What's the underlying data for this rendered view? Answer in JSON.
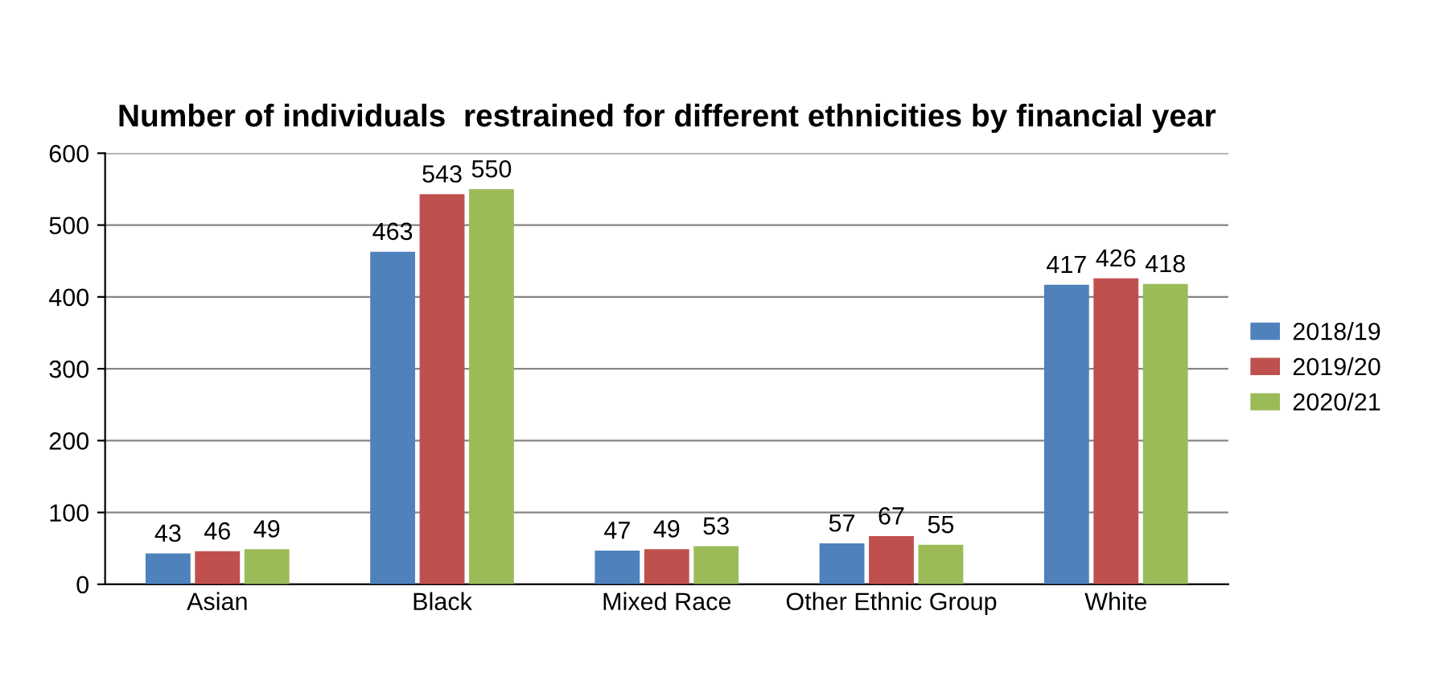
{
  "chart_data": {
    "type": "bar",
    "title": "Number of individuals  restrained for different ethnicities by financial year",
    "categories": [
      "Asian",
      "Black",
      "Mixed Race",
      "Other Ethnic Group",
      "White"
    ],
    "series": [
      {
        "name": "2018/19",
        "color": "#4f81bd",
        "values": [
          43,
          463,
          47,
          57,
          417
        ]
      },
      {
        "name": "2019/20",
        "color": "#c0504d",
        "values": [
          46,
          543,
          49,
          67,
          426
        ]
      },
      {
        "name": "2020/21",
        "color": "#9bbb59",
        "values": [
          49,
          550,
          53,
          55,
          418
        ]
      }
    ],
    "ylim": [
      0,
      600
    ],
    "yticks": [
      0,
      100,
      200,
      300,
      400,
      500,
      600
    ],
    "grid": "y",
    "legend": "right",
    "data_labels": true
  }
}
